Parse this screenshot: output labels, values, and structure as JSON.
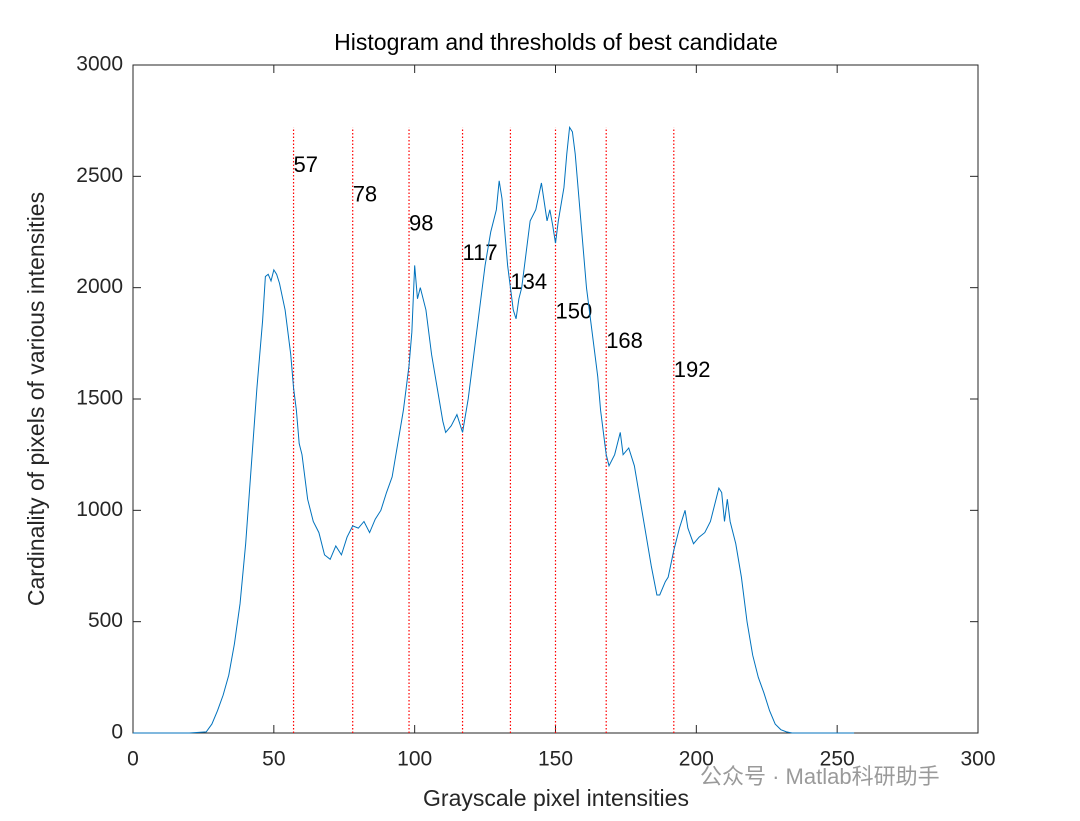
{
  "chart_data": {
    "type": "line",
    "title": "Histogram and thresholds of best candidate",
    "x_label": "Grayscale pixel intensities",
    "y_label": "Cardinality of pixels of various intensities",
    "x": [
      0,
      10,
      20,
      26,
      28,
      30,
      32,
      34,
      36,
      38,
      40,
      42,
      44,
      46,
      47,
      48,
      49,
      50,
      51,
      52,
      54,
      56,
      57,
      58,
      59,
      60,
      62,
      64,
      66,
      68,
      70,
      72,
      74,
      76,
      78,
      80,
      82,
      84,
      86,
      88,
      90,
      92,
      94,
      96,
      98,
      99,
      100,
      101,
      102,
      104,
      106,
      108,
      110,
      111,
      113,
      115,
      117,
      119,
      121,
      123,
      125,
      127,
      129,
      130,
      131,
      133,
      134,
      135,
      136,
      137,
      138,
      139,
      141,
      143,
      145,
      147,
      148,
      149,
      150,
      151,
      153,
      154,
      155,
      156,
      157,
      159,
      161,
      163,
      165,
      166,
      168,
      169,
      171,
      173,
      174,
      176,
      178,
      180,
      182,
      184,
      186,
      187,
      189,
      190,
      192,
      194,
      196,
      197,
      199,
      201,
      203,
      205,
      207,
      208,
      209,
      210,
      211,
      212,
      214,
      216,
      218,
      220,
      222,
      224,
      226,
      228,
      230,
      232,
      234,
      256
    ],
    "values": [
      0,
      0,
      0,
      5,
      40,
      100,
      170,
      260,
      400,
      580,
      850,
      1200,
      1550,
      1850,
      2050,
      2060,
      2030,
      2080,
      2060,
      2020,
      1900,
      1700,
      1550,
      1450,
      1300,
      1250,
      1050,
      950,
      900,
      800,
      780,
      840,
      800,
      880,
      930,
      920,
      950,
      900,
      960,
      1000,
      1080,
      1150,
      1300,
      1450,
      1650,
      1800,
      2100,
      1950,
      2000,
      1900,
      1700,
      1550,
      1400,
      1350,
      1380,
      1430,
      1350,
      1500,
      1700,
      1900,
      2100,
      2250,
      2350,
      2480,
      2400,
      2100,
      2000,
      1900,
      1860,
      1950,
      2000,
      2100,
      2300,
      2350,
      2470,
      2300,
      2350,
      2280,
      2200,
      2300,
      2450,
      2600,
      2720,
      2700,
      2600,
      2300,
      2000,
      1800,
      1600,
      1450,
      1250,
      1200,
      1250,
      1350,
      1250,
      1280,
      1200,
      1050,
      900,
      750,
      620,
      620,
      680,
      700,
      820,
      920,
      1000,
      920,
      850,
      880,
      900,
      950,
      1050,
      1100,
      1080,
      950,
      1050,
      950,
      850,
      700,
      500,
      350,
      250,
      180,
      100,
      40,
      15,
      5,
      0,
      0
    ],
    "color": "#0072bd",
    "thresholds": [
      57,
      78,
      98,
      117,
      134,
      150,
      168,
      192
    ],
    "threshold_color": "#ff0000",
    "xlim": [
      0,
      300
    ],
    "xticks": [
      0,
      50,
      100,
      150,
      200,
      250,
      300
    ],
    "ylim": [
      0,
      3000
    ],
    "yticks": [
      0,
      500,
      1000,
      1500,
      2000,
      2500,
      3000
    ],
    "watermark": "公众号 · Matlab科研助手"
  }
}
